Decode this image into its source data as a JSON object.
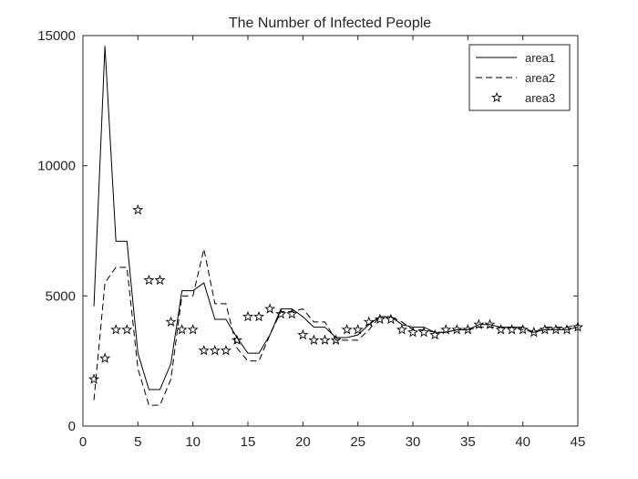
{
  "chart_data": {
    "type": "line",
    "title": "The Number of Infected People",
    "xlabel": "",
    "ylabel": "",
    "xlim": [
      0,
      45
    ],
    "ylim": [
      0,
      15000
    ],
    "xticks": [
      0,
      5,
      10,
      15,
      20,
      25,
      30,
      35,
      40,
      45
    ],
    "yticks": [
      0,
      5000,
      10000,
      15000
    ],
    "xtick_labels": [
      "0",
      "5",
      "10",
      "15",
      "20",
      "25",
      "30",
      "35",
      "40",
      "45"
    ],
    "ytick_labels": [
      "0",
      "5000",
      "10000",
      "15000"
    ],
    "grid": false,
    "legend_position": "top-right",
    "x": [
      1,
      2,
      3,
      4,
      5,
      6,
      7,
      8,
      9,
      10,
      11,
      12,
      13,
      14,
      15,
      16,
      17,
      18,
      19,
      20,
      21,
      22,
      23,
      24,
      25,
      26,
      27,
      28,
      29,
      30,
      31,
      32,
      33,
      34,
      35,
      36,
      37,
      38,
      39,
      40,
      41,
      42,
      43,
      44,
      45
    ],
    "series": [
      {
        "name": "area1",
        "style": "solid",
        "values": [
          4600,
          14600,
          7100,
          7100,
          2800,
          1400,
          1400,
          2400,
          5200,
          5200,
          5500,
          4100,
          4100,
          3400,
          2800,
          2800,
          3500,
          4500,
          4500,
          4200,
          3800,
          3800,
          3400,
          3400,
          3500,
          3900,
          4200,
          4200,
          3900,
          3800,
          3800,
          3600,
          3600,
          3700,
          3700,
          3900,
          3900,
          3800,
          3800,
          3800,
          3600,
          3700,
          3700,
          3700,
          3800
        ]
      },
      {
        "name": "area2",
        "style": "dashed",
        "values": [
          1000,
          5500,
          6100,
          6100,
          2200,
          800,
          800,
          1800,
          5000,
          5000,
          6800,
          4700,
          4700,
          3000,
          2500,
          2500,
          3500,
          4400,
          4400,
          4500,
          4000,
          4000,
          3300,
          3300,
          3300,
          3700,
          4200,
          4200,
          4000,
          3700,
          3700,
          3600,
          3600,
          3700,
          3700,
          3800,
          3800,
          3800,
          3800,
          3700,
          3600,
          3800,
          3800,
          3800,
          3900
        ]
      },
      {
        "name": "area3",
        "style": "star-markers",
        "values": [
          1800,
          2600,
          3700,
          3700,
          8300,
          5600,
          5600,
          4000,
          3700,
          3700,
          2900,
          2900,
          2900,
          3300,
          4200,
          4200,
          4500,
          4300,
          4300,
          3500,
          3300,
          3300,
          3300,
          3700,
          3700,
          4000,
          4100,
          4100,
          3700,
          3600,
          3600,
          3500,
          3700,
          3700,
          3700,
          3900,
          3900,
          3700,
          3700,
          3700,
          3600,
          3700,
          3700,
          3700,
          3800
        ]
      }
    ]
  }
}
